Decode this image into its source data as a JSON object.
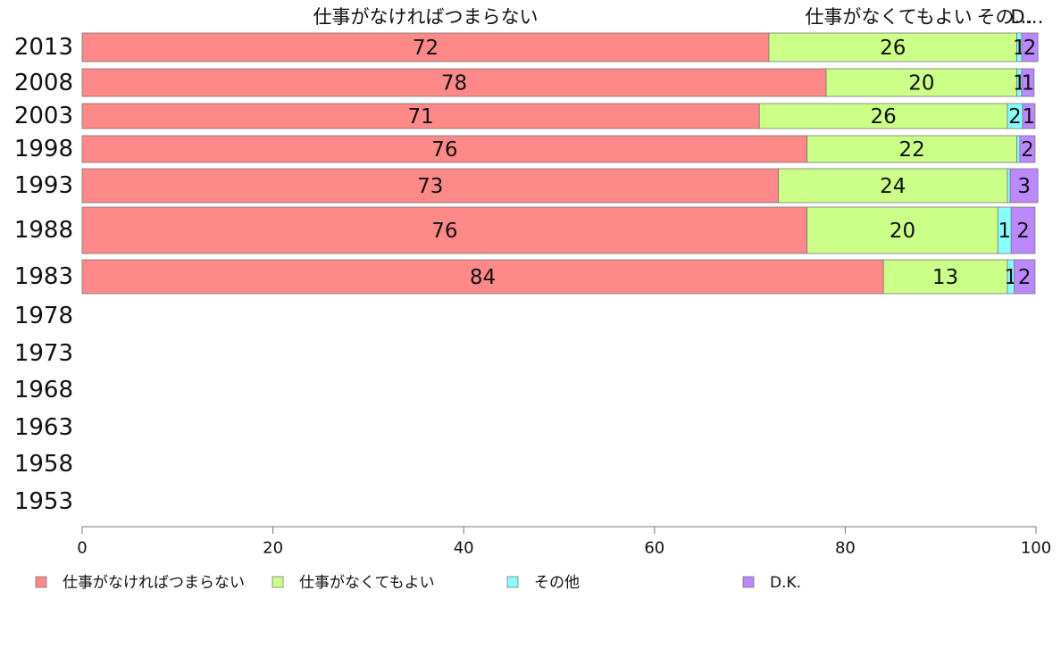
{
  "chart_data": {
    "type": "bar",
    "orientation": "horizontal",
    "stacked": true,
    "categories": [
      "2013",
      "2008",
      "2003",
      "1998",
      "1993",
      "1988",
      "1983",
      "1978",
      "1973",
      "1968",
      "1963",
      "1958",
      "1953"
    ],
    "series": [
      {
        "name": "仕事がなければつまらない",
        "color": "#ff8888",
        "values": [
          72,
          78,
          71,
          76,
          73,
          76,
          84,
          null,
          null,
          null,
          null,
          null,
          null
        ]
      },
      {
        "name": "仕事がなくてもよい",
        "color": "#ccff88",
        "values": [
          26,
          20,
          26,
          22,
          24,
          20,
          13,
          null,
          null,
          null,
          null,
          null,
          null
        ]
      },
      {
        "name": "その他",
        "color": "#88ffff",
        "values": [
          0.5,
          0.5,
          1.6,
          0.3,
          0.3,
          1.4,
          0.7,
          null,
          null,
          null,
          null,
          null,
          null
        ]
      },
      {
        "name": "D.K.",
        "color": "#bb88ff",
        "values": [
          1.7,
          1.3,
          1.3,
          1.6,
          2.9,
          2.5,
          2.2,
          null,
          null,
          null,
          null,
          null,
          null
        ]
      }
    ],
    "data_labels": [
      [
        "72",
        "78",
        "71",
        "76",
        "73",
        "76",
        "84"
      ],
      [
        "26",
        "20",
        "26",
        "22",
        "24",
        "20",
        "13"
      ],
      [
        "1",
        "1",
        "2",
        "",
        "",
        "1",
        "1"
      ],
      [
        "2",
        "1",
        "1",
        "2",
        "3",
        "2",
        "2"
      ]
    ],
    "top_labels": [
      "仕事がなければつまらない",
      "仕事がなくてもよい",
      "その…",
      "D…"
    ],
    "xlim": [
      0,
      100
    ],
    "xticks": [
      "0",
      "20",
      "40",
      "60",
      "80",
      "100"
    ],
    "grid": false,
    "legend": {
      "position": "bottom",
      "entries": [
        "仕事がなければつまらない",
        "仕事がなくてもよい",
        "その他",
        "D.K."
      ]
    }
  }
}
